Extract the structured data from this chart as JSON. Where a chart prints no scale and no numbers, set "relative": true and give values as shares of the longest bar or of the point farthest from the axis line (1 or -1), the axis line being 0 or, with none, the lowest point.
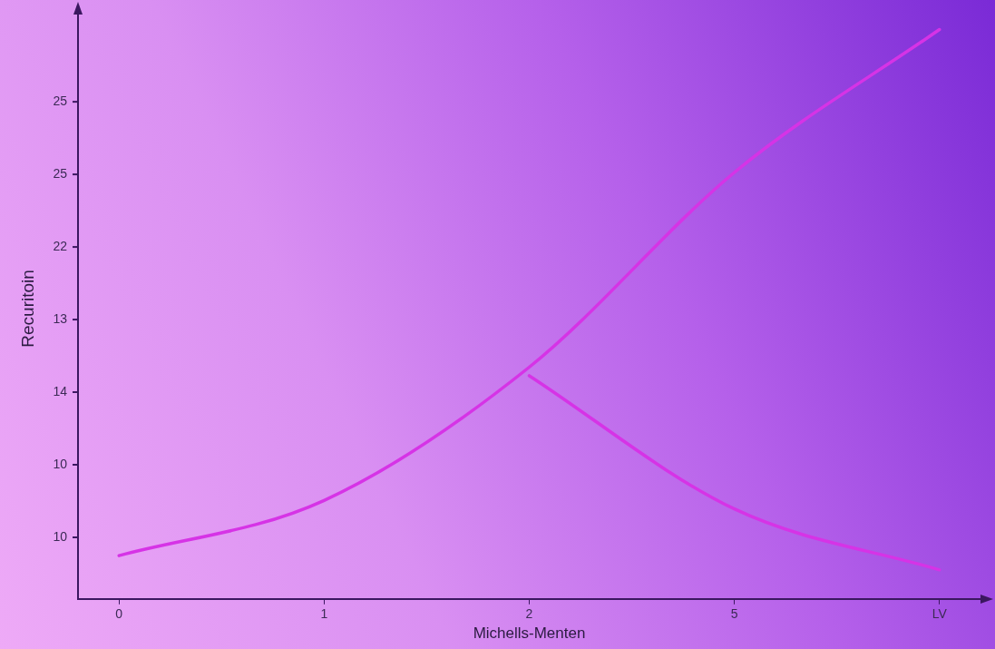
{
  "chart_data": {
    "type": "line",
    "xlabel": "Michells-Menten",
    "ylabel": "Recuritoin",
    "relative": true,
    "categories": [
      "0",
      "1",
      "2",
      "5",
      "LV"
    ],
    "annotations": [
      "10",
      "10",
      "14",
      "13",
      "22",
      "25",
      "25"
    ],
    "grid": false,
    "legend": false,
    "marker": "none",
    "line_style": "solid",
    "series": [
      {
        "color": "#d633e6",
        "values": [
          0.076,
          0.173,
          0.407,
          0.749,
          1
        ]
      },
      {
        "color": "#d633e6",
        "values": [
          null,
          null,
          0.392,
          0.158,
          0.051
        ]
      }
    ]
  }
}
